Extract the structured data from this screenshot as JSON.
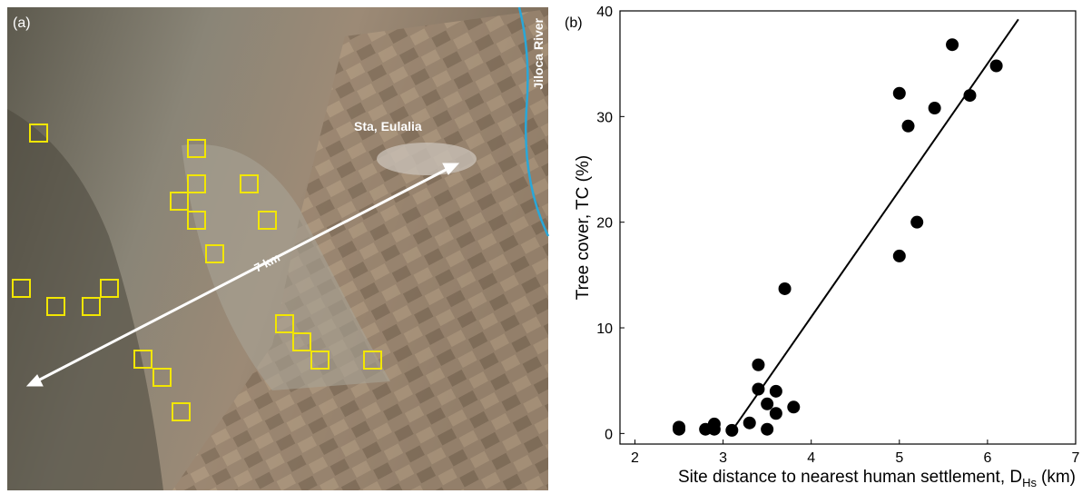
{
  "map": {
    "panel_label": "(a)",
    "town": "Sta, Eulalia",
    "river": "Jiloca River",
    "distance": "7 km"
  },
  "chart_data": {
    "type": "scatter",
    "panel_label": "(b)",
    "ylabel": "Tree cover, TC (%)",
    "xlabel": "Site distance to nearest human settlement, D",
    "xlabel_subscript": "Hs",
    "xlabel_unit": "(km)",
    "x": [
      2.5,
      2.5,
      2.8,
      2.9,
      2.9,
      3.1,
      3.3,
      3.4,
      3.4,
      3.5,
      3.5,
      3.6,
      3.6,
      3.7,
      3.8,
      5.0,
      5.0,
      5.1,
      5.2,
      5.4,
      5.6,
      5.8,
      6.1
    ],
    "values": [
      0.6,
      0.4,
      0.4,
      0.9,
      0.4,
      0.3,
      1.0,
      6.5,
      4.2,
      2.8,
      0.4,
      4.0,
      1.9,
      13.7,
      2.5,
      16.8,
      32.2,
      29.1,
      20.0,
      30.8,
      36.8,
      32.0,
      34.8
    ],
    "color": "#000000",
    "trend_line": {
      "x": [
        3.08,
        6.35
      ],
      "y": [
        0,
        39.2
      ]
    },
    "xlim": [
      1.83,
      7
    ],
    "ylim": [
      -1,
      40
    ],
    "xticks": [
      2,
      3,
      4,
      5,
      6,
      7
    ],
    "yticks": [
      0,
      10,
      20,
      30,
      40
    ]
  }
}
